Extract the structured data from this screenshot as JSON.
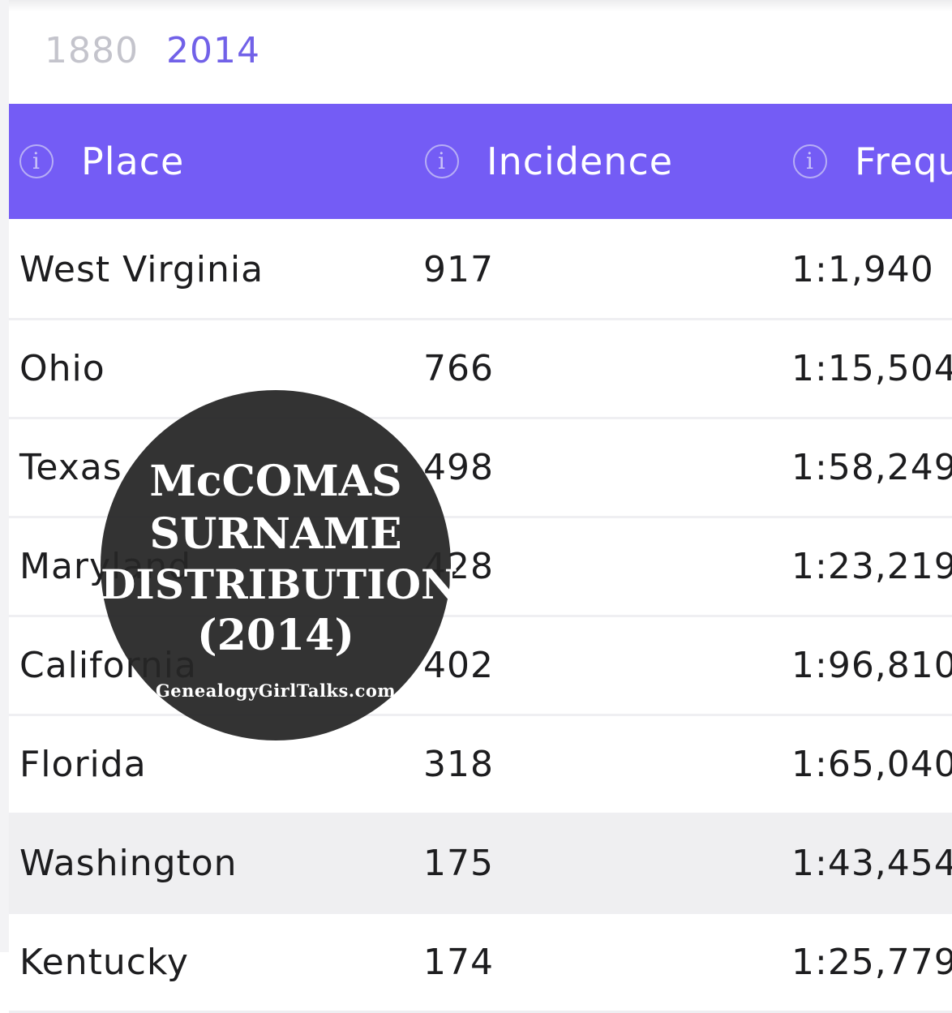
{
  "year_tabs": [
    {
      "label": "1880",
      "active": false
    },
    {
      "label": "2014",
      "active": true
    }
  ],
  "table": {
    "columns": [
      {
        "label": "Place",
        "info_icon": "info-icon"
      },
      {
        "label": "Incidence",
        "info_icon": "info-icon"
      },
      {
        "label": "Frequ",
        "info_icon": "info-icon"
      }
    ],
    "rows": [
      {
        "place": "West Virginia",
        "incidence": "917",
        "frequency": "1:1,940"
      },
      {
        "place": "Ohio",
        "incidence": "766",
        "frequency": "1:15,504"
      },
      {
        "place": "Texas",
        "incidence": "498",
        "frequency": "1:58,249"
      },
      {
        "place": "Maryland",
        "incidence": "428",
        "frequency": "1:23,219"
      },
      {
        "place": "California",
        "incidence": "402",
        "frequency": "1:96,810"
      },
      {
        "place": "Florida",
        "incidence": "318",
        "frequency": "1:65,040"
      },
      {
        "place": "Washington",
        "incidence": "175",
        "frequency": "1:43,454",
        "highlighted": true
      },
      {
        "place": "Kentucky",
        "incidence": "174",
        "frequency": "1:25,779"
      }
    ]
  },
  "overlay_badge": {
    "line1": "McCOMAS",
    "line2": "SURNAME",
    "line3": "DISTRIBUTION",
    "line4": "(2014)",
    "site": "GenealogyGirlTalks.com"
  },
  "colors": {
    "header_bg": "#745cf5",
    "active_tab": "#7161e8",
    "inactive_tab": "#c4c4cc",
    "badge_bg": "#262626"
  }
}
